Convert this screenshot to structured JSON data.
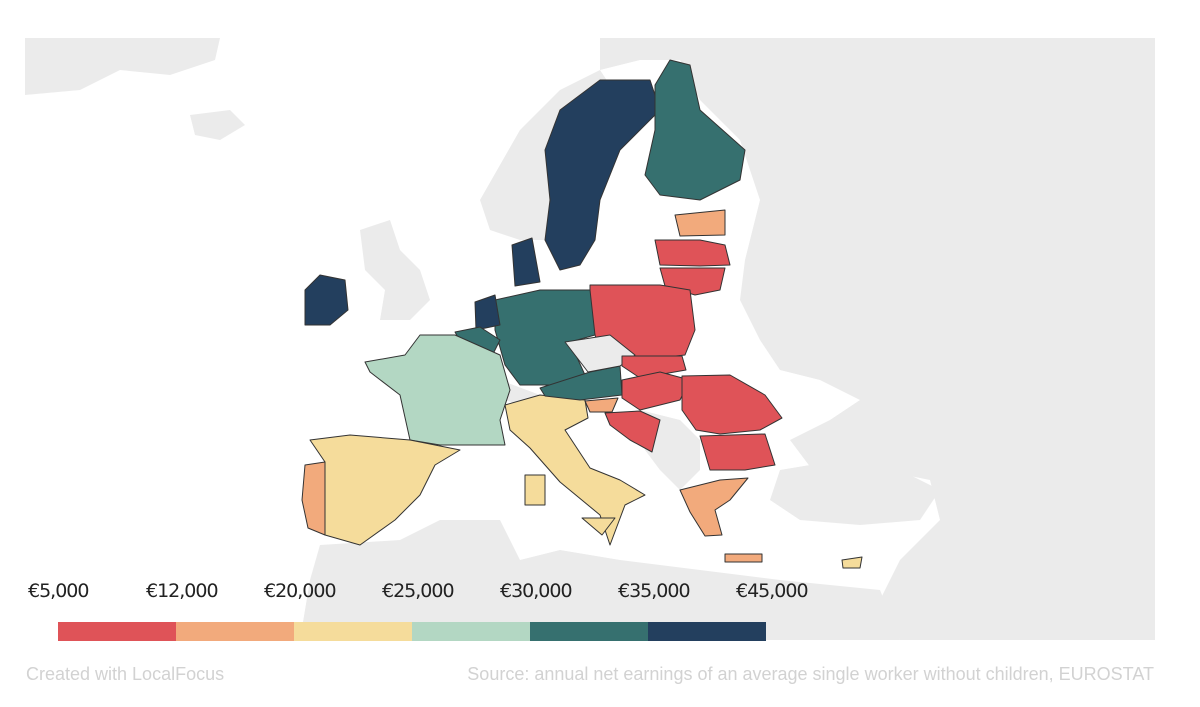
{
  "legend": {
    "labels": [
      "€5,000",
      "€12,000",
      "€20,000",
      "€25,000",
      "€30,000",
      "€35,000",
      "€45,000"
    ],
    "colors": [
      "#df5358",
      "#f2aa7c",
      "#f5dc9b",
      "#b3d7c3",
      "#36706f",
      "#233f5e"
    ]
  },
  "no_data_color": "#ebebeb",
  "regions": {
    "sweden": 5,
    "denmark": 5,
    "netherlands": 5,
    "ireland": 5,
    "finland": 4,
    "germany": 4,
    "austria": 4,
    "belgium": 4,
    "france": 3,
    "spain": 2,
    "italy": 2,
    "sardinia": 2,
    "sicily": 2,
    "cyprus": 2,
    "portugal": 1,
    "estonia": 1,
    "greece": 1,
    "slovenia": 1,
    "crete": 1,
    "latvia": 0,
    "lithuania": 0,
    "poland": 0,
    "slovakia": 0,
    "hungary": 0,
    "croatia": 0,
    "romania": 0,
    "bulgaria": 0
  },
  "footer": {
    "credit": "Created with LocalFocus",
    "source": "Source:  annual net earnings of an average single worker without children, EUROSTAT"
  }
}
